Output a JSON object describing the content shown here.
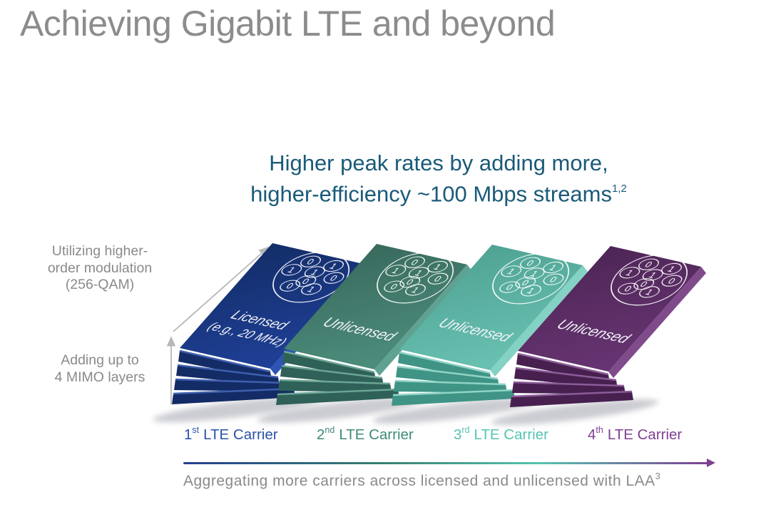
{
  "slide": {
    "title": "Achieving Gigabit LTE and beyond",
    "subtitle": {
      "line1": "Higher peak rates by adding more,",
      "line2": "higher-efficiency ~100 Mbps streams",
      "superscript": "1,2",
      "color": "#1A5A78"
    },
    "annotations": {
      "modulation": {
        "line1": "Utilizing higher-",
        "line2": "order modulation",
        "line3": "(256-QAM)"
      },
      "mimo": {
        "line1": "Adding up to",
        "line2": "4 MIMO layers"
      }
    },
    "stacks": [
      {
        "label_line1": "Licensed",
        "label_line2": "(e.g., 20 MHz)",
        "mimo_layers": 4,
        "face_top": "#122a60",
        "face_bottom": "#1e3f95",
        "side": "#2e55b5",
        "strip": "#132c66",
        "strip_highlight": "#3f5fae"
      },
      {
        "label_line1": "Unlicensed",
        "label_line2": "",
        "mimo_layers": 4,
        "face_top": "#356458",
        "face_bottom": "#4c8c7b",
        "side": "#60a292",
        "strip": "#2f6158",
        "strip_highlight": "#6ba494"
      },
      {
        "label_line1": "Unlicensed",
        "label_line2": "",
        "mimo_layers": 4,
        "face_top": "#4b9e8f",
        "face_bottom": "#68c0b0",
        "side": "#83d2c4",
        "strip": "#3f9485",
        "strip_highlight": "#90d4c6"
      },
      {
        "label_line1": "Unlicensed",
        "label_line2": "",
        "mimo_layers": 4,
        "face_top": "#4a2352",
        "face_bottom": "#663471",
        "side": "#804b8b",
        "strip": "#472050",
        "strip_highlight": "#8b5c98"
      }
    ],
    "binary_digits": [
      "0",
      "1",
      "1",
      "1",
      "0",
      "0",
      "0",
      "1"
    ],
    "carriers": [
      {
        "ordinal": "1",
        "suffix": "st",
        "text": "LTE Carrier",
        "color": "#2B52A8"
      },
      {
        "ordinal": "2",
        "suffix": "nd",
        "text": "LTE Carrier",
        "color": "#3D8A7A"
      },
      {
        "ordinal": "3",
        "suffix": "rd",
        "text": "LTE Carrier",
        "color": "#57C4B2"
      },
      {
        "ordinal": "4",
        "suffix": "th",
        "text": "LTE Carrier",
        "color": "#7F3F92"
      }
    ],
    "axis_caption": {
      "text": "Aggregating more carriers across licensed and unlicensed with LAA",
      "superscript": "3"
    },
    "gradient_arrow_colors": [
      "#24408F",
      "#37806F",
      "#56C2B0",
      "#7D4191"
    ],
    "text_colors": {
      "title": "#8C8C8C",
      "annotations": "#8A8A8A",
      "caption": "#8A8A8A",
      "arrow_gray": "#B8B8B8"
    }
  }
}
